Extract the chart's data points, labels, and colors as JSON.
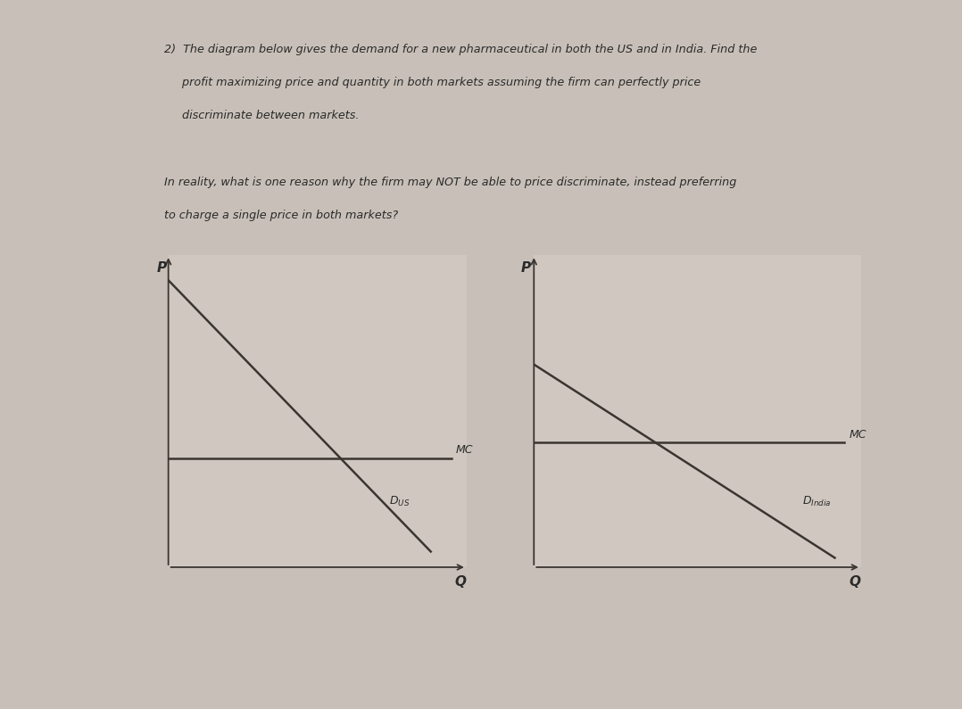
{
  "bg_color": "#c8c0b8",
  "panel_color": "#d0c8c0",
  "text_color": "#2a2a2a",
  "question_text_line1": "2)  The diagram below gives the demand for a new pharmaceutical in both the US and in India. Find the",
  "question_text_line2": "     profit maximizing price and quantity in both markets assuming the firm can perfectly price",
  "question_text_line3": "     discriminate between markets.",
  "question_text_line4": "In reality, what is one reason why the firm may NOT be able to price discriminate, instead preferring",
  "question_text_line5": "to charge a single price in both markets?",
  "axis_color": "#3a3530",
  "line_color": "#3a3530",
  "graph_left_d_label": "D_US",
  "graph_right_d_label": "D_India",
  "mc_label": "MC",
  "p_label": "P",
  "q_label": "Q"
}
